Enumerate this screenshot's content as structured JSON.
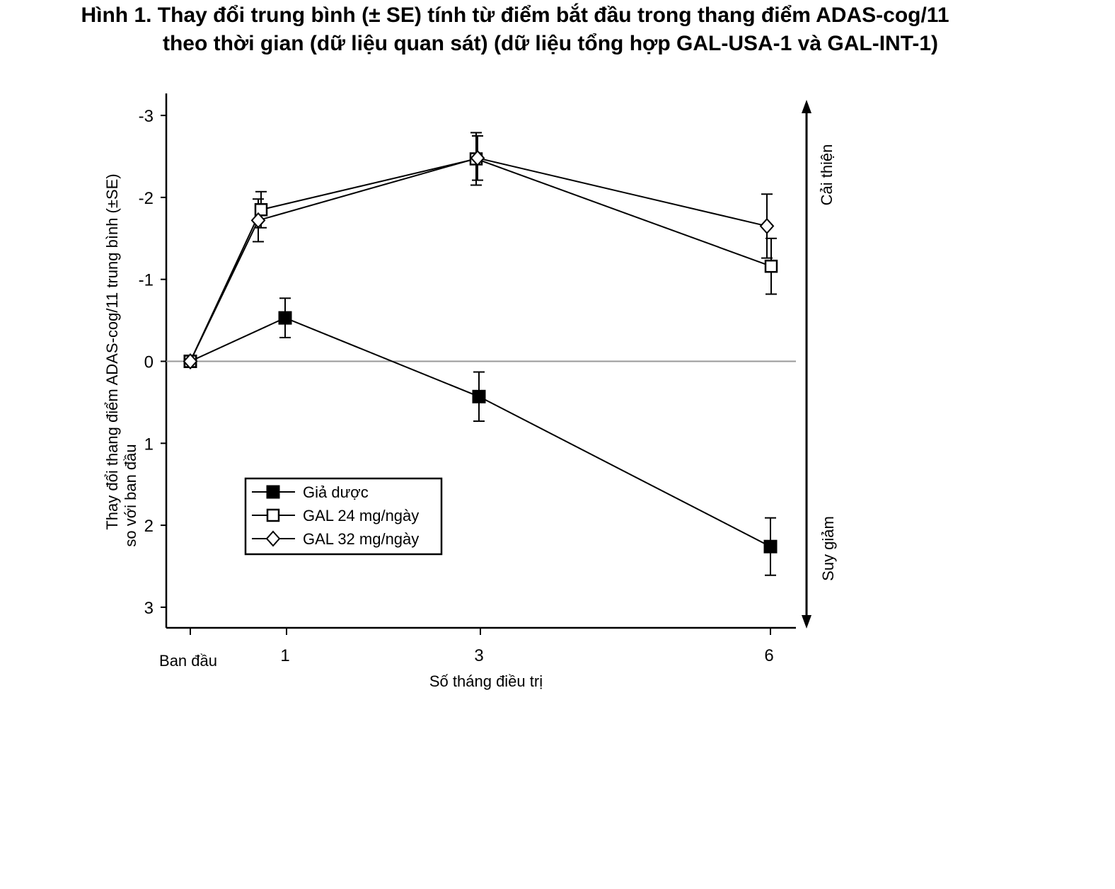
{
  "figure": {
    "title_line1": "Hình 1. Thay đổi trung bình (± SE) tính từ điểm bắt đầu trong thang điểm ADAS-cog/11",
    "title_line2": "theo thời gian (dữ liệu quan sát) (dữ liệu tổng hợp GAL-USA-1 và GAL-INT-1)"
  },
  "chart_data": {
    "type": "line",
    "title": "Hình 1. Thay đổi trung bình (± SE) tính từ điểm bắt đầu trong thang điểm ADAS-cog/11 theo thời gian (dữ liệu quan sát) (dữ liệu tổng hợp GAL-USA-1 và GAL-INT-1)",
    "xlabel": "Số tháng điều trị",
    "ylabel_line1": "Thay đổi thang điểm ADAS-cog/11 trung bình (±SE)",
    "ylabel_line2": "so với ban đầu",
    "right_label_top": "Cải thiện",
    "right_label_bottom": "Suy giảm",
    "x_ticks": [
      {
        "x": 0,
        "label": "Ban đầu"
      },
      {
        "x": 1,
        "label": "1"
      },
      {
        "x": 3,
        "label": "3"
      },
      {
        "x": 6,
        "label": "6"
      }
    ],
    "y_ticks": [
      {
        "y": -3,
        "label": "-3"
      },
      {
        "y": -2,
        "label": "-2"
      },
      {
        "y": -1,
        "label": "-1"
      },
      {
        "y": 0,
        "label": "0"
      },
      {
        "y": 1,
        "label": "1"
      },
      {
        "y": 2,
        "label": "2"
      },
      {
        "y": 3,
        "label": "3"
      }
    ],
    "y_axis_inverted": true,
    "ylim": [
      -3.3,
      3.2
    ],
    "xlim": [
      -0.25,
      6.25
    ],
    "reference_line_y": 0,
    "legend_position": "lower-left",
    "series": [
      {
        "name": "Giả dược",
        "marker": "filled-square",
        "points": [
          {
            "x": 0,
            "y": 0.0,
            "se": 0.0
          },
          {
            "x": 1,
            "y": -0.53,
            "se": 0.24
          },
          {
            "x": 3,
            "y": 0.43,
            "se": 0.3
          },
          {
            "x": 6,
            "y": 2.26,
            "se": 0.35
          }
        ]
      },
      {
        "name": "GAL 24 mg/ngày",
        "marker": "open-square",
        "points": [
          {
            "x": 0,
            "y": 0.0,
            "se": 0.0
          },
          {
            "x": 1,
            "y": -1.85,
            "se": 0.22
          },
          {
            "x": 3,
            "y": -2.47,
            "se": 0.32
          },
          {
            "x": 6,
            "y": -1.16,
            "se": 0.34
          }
        ]
      },
      {
        "name": "GAL 32 mg/ngày",
        "marker": "open-diamond",
        "points": [
          {
            "x": 0,
            "y": 0.0,
            "se": 0.0
          },
          {
            "x": 1,
            "y": -1.72,
            "se": 0.26
          },
          {
            "x": 3,
            "y": -2.48,
            "se": 0.27
          },
          {
            "x": 6,
            "y": -1.65,
            "se": 0.39
          }
        ]
      }
    ]
  }
}
